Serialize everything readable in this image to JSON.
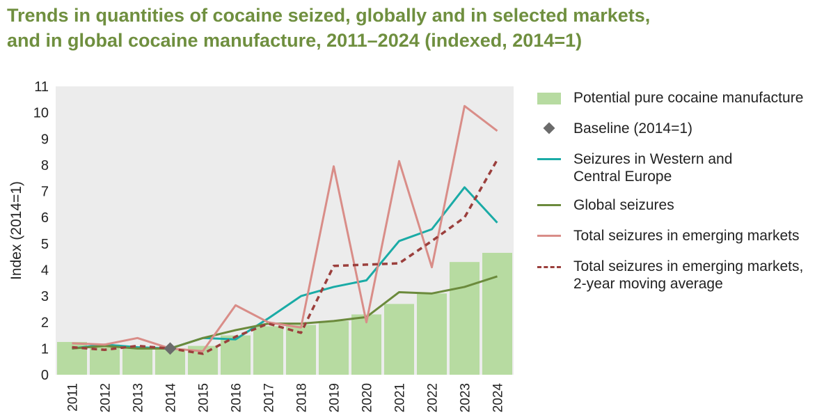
{
  "chart_data": {
    "type": "bar",
    "title": "Trends in quantities of cocaine seized, globally and in selected markets, and in global cocaine manufacture, 2011–2024 (indexed, 2014=1)",
    "title_lines": [
      "Trends in quantities of cocaine seized, globally and in selected markets,",
      "and in global cocaine manufacture, 2011–2024 (indexed, 2014=1)"
    ],
    "xlabel": "",
    "ylabel": "Index (2014=1)",
    "ylim": [
      0,
      11
    ],
    "yticks": [
      0,
      1,
      2,
      3,
      4,
      5,
      6,
      7,
      8,
      9,
      10,
      11
    ],
    "grid": false,
    "legend_position": "right",
    "categories": [
      "2011",
      "2012",
      "2013",
      "2014",
      "2015",
      "2016",
      "2017",
      "2018",
      "2019",
      "2020",
      "2021",
      "2022",
      "2023",
      "2024"
    ],
    "series": [
      {
        "name": "Potential pure cocaine manufacture",
        "kind": "bar",
        "color": "#b7dba1",
        "values": [
          1.25,
          1.15,
          1.05,
          1.0,
          1.1,
          1.5,
          1.85,
          1.9,
          2.05,
          2.3,
          2.7,
          3.1,
          4.3,
          4.65
        ]
      },
      {
        "name": "Baseline (2014=1)",
        "kind": "marker",
        "color": "#6b6b6b",
        "values": [
          null,
          null,
          null,
          1.0,
          null,
          null,
          null,
          null,
          null,
          null,
          null,
          null,
          null,
          null
        ]
      },
      {
        "name": "Seizures in Western and Central Europe",
        "label_lines": [
          "Seizures in Western and",
          "Central Europe"
        ],
        "kind": "line",
        "color": "#1aaba6",
        "values": [
          1.0,
          1.15,
          1.05,
          1.0,
          1.4,
          1.35,
          2.15,
          3.0,
          3.35,
          3.6,
          5.1,
          5.55,
          7.15,
          5.8
        ]
      },
      {
        "name": "Global seizures",
        "kind": "line",
        "color": "#6b8a3c",
        "values": [
          1.0,
          1.1,
          1.0,
          1.0,
          1.4,
          1.7,
          1.95,
          1.95,
          2.05,
          2.2,
          3.15,
          3.1,
          3.35,
          3.75
        ]
      },
      {
        "name": "Total seizures in emerging markets",
        "kind": "line",
        "color": "#d98d88",
        "values": [
          1.2,
          1.15,
          1.4,
          1.0,
          0.9,
          2.65,
          2.0,
          1.8,
          7.95,
          2.0,
          8.15,
          4.1,
          10.25,
          9.3
        ]
      },
      {
        "name": "Total seizures in emerging markets, 2-year moving average",
        "label_lines": [
          "Total seizures in emerging markets,",
          "2-year moving average"
        ],
        "kind": "dashed",
        "color": "#9b3f3c",
        "values": [
          1.05,
          0.95,
          1.1,
          1.0,
          0.8,
          1.45,
          1.95,
          1.6,
          4.15,
          4.2,
          4.25,
          5.1,
          6.0,
          8.2
        ]
      }
    ]
  }
}
